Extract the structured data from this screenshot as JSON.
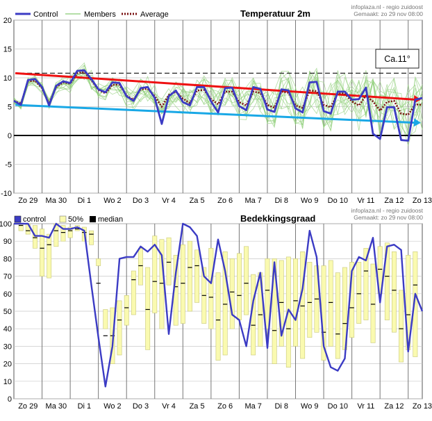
{
  "charts": {
    "top": {
      "title": "Temperatuur 2m",
      "source": "infoplaza.nl - regio zuidoost",
      "made": "Gemaakt: zo 29 nov 08:00",
      "legend": {
        "control": "Control",
        "members": "Members",
        "average": "Average"
      },
      "annotation": "Ca.11°"
    },
    "bottom": {
      "title": "Bedekkingsgraad",
      "source": "infoplaza.nl - regio zuidoost",
      "made": "Gemaakt: zo 29 nov 08:00",
      "legend": {
        "control": "control",
        "band": "50%",
        "median": "median"
      }
    }
  },
  "chart_data": [
    {
      "type": "line",
      "title": "Temperatuur 2m",
      "ylim": [
        -10,
        20
      ],
      "yticks": [
        -10,
        -5,
        0,
        5,
        10,
        15,
        20
      ],
      "xlim": [
        0,
        14.5
      ],
      "day_labels": [
        "Zo 29",
        "Ma 30",
        "Di 1",
        "Wo 2",
        "Do 3",
        "Vr 4",
        "Za 5",
        "Zo 6",
        "Ma 7",
        "Di 8",
        "Wo 9",
        "Do 10",
        "Vr 11",
        "Za 12",
        "Zo 13"
      ],
      "x": [
        0,
        0.25,
        0.5,
        0.75,
        1,
        1.25,
        1.5,
        1.75,
        2,
        2.25,
        2.5,
        2.75,
        3,
        3.25,
        3.5,
        3.75,
        4,
        4.25,
        4.5,
        4.75,
        5,
        5.25,
        5.5,
        5.75,
        6,
        6.25,
        6.5,
        6.75,
        7,
        7.25,
        7.5,
        7.75,
        8,
        8.25,
        8.5,
        8.75,
        9,
        9.25,
        9.5,
        9.75,
        10,
        10.25,
        10.5,
        10.75,
        11,
        11.25,
        11.5,
        11.75,
        12,
        12.25,
        12.5,
        12.75,
        13,
        13.25,
        13.5,
        13.75,
        14,
        14.25,
        14.5
      ],
      "series": [
        {
          "name": "Control",
          "color": "#3b3bc4",
          "values": [
            6,
            5.3,
            9.6,
            9.8,
            8.4,
            5.2,
            8.6,
            9.4,
            9.1,
            11.2,
            11.3,
            9.8,
            8,
            7.5,
            9.2,
            9.1,
            6.8,
            6,
            8.2,
            8.4,
            6.5,
            2,
            6.8,
            7.8,
            5.8,
            5.2,
            8.4,
            8.4,
            5.9,
            4,
            8.2,
            8.3,
            5.1,
            4.4,
            8.4,
            8.1,
            4.5,
            4.1,
            8,
            7.8,
            4.7,
            4,
            9.2,
            9.3,
            4.2,
            3.8,
            7.6,
            7.6,
            6.2,
            6.3,
            8.3,
            0.3,
            -0.6,
            4.9,
            4.9,
            -0.8,
            -0.9,
            6.2,
            6.5
          ]
        },
        {
          "name": "Average",
          "color": "#7a1010",
          "values": [
            6,
            5.5,
            9.4,
            9.5,
            8.2,
            5.5,
            8.4,
            9.2,
            9,
            10.8,
            11,
            9.6,
            7.9,
            7.3,
            8.8,
            8.8,
            6.9,
            6.2,
            8,
            8.1,
            6.8,
            5,
            7,
            7.6,
            6.4,
            5.6,
            7.8,
            7.9,
            6.3,
            5.4,
            7.6,
            7.6,
            5.8,
            5.2,
            7.6,
            7.4,
            5.3,
            4.8,
            7.6,
            7.4,
            5.2,
            4.8,
            7.8,
            7.7,
            5.3,
            4.9,
            7.3,
            7.3,
            5.9,
            5.2,
            6.9,
            5.9,
            4.3,
            5.8,
            6,
            3.8,
            3.6,
            5.4,
            5.3
          ]
        }
      ],
      "trend_lines": [
        {
          "color": "#ee1111",
          "from": [
            0.05,
            10.8
          ],
          "to": [
            14.45,
            6.2
          ]
        },
        {
          "color": "#19a8e6",
          "from": [
            0.05,
            5.3
          ],
          "to": [
            14.45,
            2.2
          ]
        }
      ],
      "reference_line": {
        "y": 10.8,
        "style": "dashed",
        "color": "#222222"
      }
    },
    {
      "type": "line",
      "title": "Bedekkingsgraad",
      "ylim": [
        0,
        100
      ],
      "yticks": [
        0,
        10,
        20,
        30,
        40,
        50,
        60,
        70,
        80,
        90,
        100
      ],
      "xlim": [
        0,
        14.5
      ],
      "day_labels": [
        "Zo 29",
        "Ma 30",
        "Di 1",
        "Wo 2",
        "Do 3",
        "Vr 4",
        "Za 5",
        "Zo 6",
        "Ma 7",
        "Di 8",
        "Wo 9",
        "Do 10",
        "Vr 11",
        "Za 12",
        "Zo 13"
      ],
      "x": [
        0,
        0.25,
        0.5,
        0.75,
        1,
        1.25,
        1.5,
        1.75,
        2,
        2.25,
        2.5,
        2.75,
        3,
        3.25,
        3.5,
        3.75,
        4,
        4.25,
        4.5,
        4.75,
        5,
        5.25,
        5.5,
        5.75,
        6,
        6.25,
        6.5,
        6.75,
        7,
        7.25,
        7.5,
        7.75,
        8,
        8.25,
        8.5,
        8.75,
        9,
        9.25,
        9.5,
        9.75,
        10,
        10.25,
        10.5,
        10.75,
        11,
        11.25,
        11.5,
        11.75,
        12,
        12.25,
        12.5,
        12.75,
        13,
        13.25,
        13.5,
        13.75,
        14,
        14.25,
        14.5
      ],
      "series": [
        {
          "name": "control",
          "color": "#3b3bc4",
          "values": [
            100,
            100,
            100,
            93,
            93,
            92,
            100,
            97,
            97,
            98,
            96,
            65,
            35,
            7,
            30,
            80,
            81,
            81,
            87,
            84,
            88,
            82,
            37,
            72,
            100,
            98,
            93,
            70,
            66,
            91,
            73,
            48,
            45,
            30,
            56,
            72,
            29,
            78,
            36,
            51,
            45,
            63,
            96,
            81,
            30,
            18,
            16,
            23,
            73,
            81,
            79,
            92,
            55,
            87,
            88,
            85,
            27,
            60,
            50
          ]
        }
      ],
      "band_50": {
        "x": [
          0.25,
          0.5,
          0.75,
          1,
          1.25,
          1.5,
          1.75,
          2,
          2.25,
          2.5,
          2.75,
          3,
          3.25,
          3.5,
          3.75,
          4,
          4.25,
          4.5,
          4.75,
          5,
          5.25,
          5.5,
          5.75,
          6,
          6.25,
          6.5,
          6.75,
          7,
          7.25,
          7.5,
          7.75,
          8,
          8.25,
          8.5,
          8.75,
          9,
          9.25,
          9.5,
          9.75,
          10,
          10.25,
          10.5,
          10.75,
          11,
          11.25,
          11.5,
          11.75,
          12,
          12.25,
          12.5,
          12.75,
          13,
          13.25,
          13.5,
          13.75,
          14,
          14.25
        ],
        "low": [
          96,
          94,
          86,
          70,
          69,
          87,
          90,
          92,
          96,
          90,
          88,
          76,
          40,
          20,
          25,
          42,
          48,
          65,
          28,
          49,
          40,
          65,
          42,
          43,
          50,
          55,
          43,
          40,
          22,
          25,
          40,
          45,
          48,
          25,
          30,
          40,
          20,
          30,
          18,
          30,
          23,
          35,
          38,
          22,
          30,
          23,
          28,
          35,
          43,
          45,
          32,
          60,
          45,
          38,
          21,
          28,
          24
        ],
        "high": [
          100,
          100,
          99,
          97,
          94,
          100,
          99,
          98,
          99,
          98,
          96,
          80,
          51,
          52,
          56,
          59,
          73,
          86,
          75,
          93,
          91,
          92,
          82,
          88,
          90,
          85,
          75,
          86,
          72,
          84,
          80,
          83,
          87,
          71,
          72,
          80,
          80,
          79,
          81,
          80,
          84,
          78,
          76,
          76,
          79,
          72,
          75,
          78,
          78,
          86,
          77,
          87,
          89,
          84,
          62,
          82,
          84
        ],
        "median": [
          99,
          96,
          92,
          86,
          88,
          96,
          95,
          96,
          97,
          95,
          94,
          66,
          36,
          36,
          45,
          52,
          68,
          76,
          51,
          67,
          66,
          78,
          64,
          66,
          75,
          76,
          59,
          58,
          45,
          54,
          61,
          59,
          66,
          42,
          48,
          62,
          39,
          55,
          40,
          56,
          53,
          55,
          57,
          38,
          55,
          37,
          43,
          52,
          60,
          73,
          54,
          74,
          70,
          62,
          40,
          48,
          65
        ]
      }
    }
  ]
}
